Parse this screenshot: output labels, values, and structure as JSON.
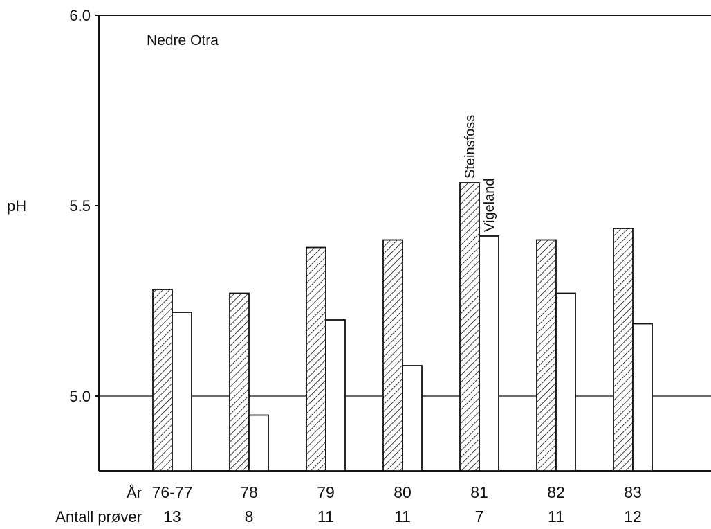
{
  "chart_data": {
    "type": "bar",
    "title": "Nedre Otra",
    "ylabel": "pH",
    "ylim": [
      4.8,
      6.0
    ],
    "yticks": [
      "5.0",
      "5.5",
      "6.0"
    ],
    "reference_line": 5.0,
    "categories": [
      "76-77",
      "78",
      "79",
      "80",
      "81",
      "82",
      "83"
    ],
    "category_row_label": "År",
    "counts": [
      "13",
      "8",
      "11",
      "11",
      "7",
      "11",
      "12"
    ],
    "count_row_label": "Antall prøver",
    "series": [
      {
        "name": "Steinsfoss",
        "pattern": "diagonal-hatch",
        "values": [
          5.28,
          5.27,
          5.39,
          5.41,
          5.56,
          5.41,
          5.44
        ]
      },
      {
        "name": "Vigeland",
        "pattern": "open",
        "values": [
          5.22,
          4.95,
          5.2,
          5.08,
          5.42,
          5.27,
          5.19
        ]
      }
    ],
    "grid": false,
    "legend": "series names written vertically above the bars for year 81"
  }
}
